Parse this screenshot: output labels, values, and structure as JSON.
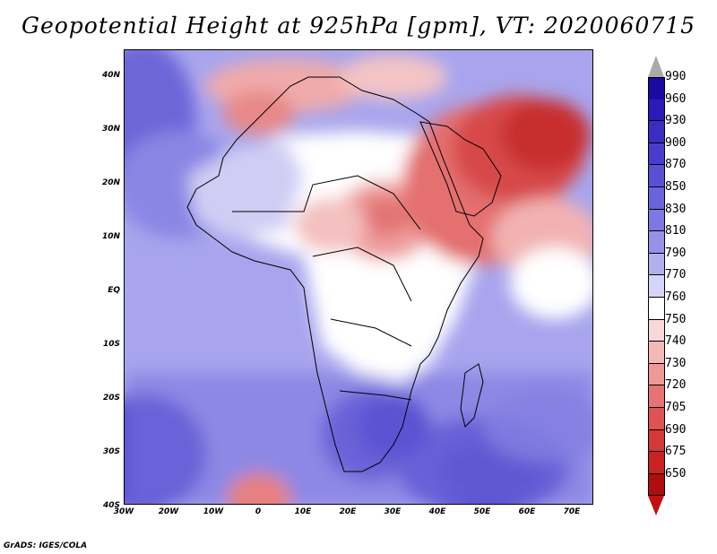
{
  "title": "Geopotential Height at 925hPa [gpm], VT: 2020060715",
  "credit": "GrADS: IGES/COLA",
  "map": {
    "lat_labels": [
      "40N",
      "30N",
      "20N",
      "10N",
      "EQ",
      "10S",
      "20S",
      "30S",
      "40S"
    ],
    "lon_labels": [
      "30W",
      "20W",
      "10W",
      "0",
      "10E",
      "20E",
      "30E",
      "40E",
      "50E",
      "60E",
      "70E"
    ],
    "ocean_color": "#a6a6ee",
    "features": [
      {
        "name": "low-height-iran-arabia",
        "value_gpm": 690,
        "color": "#d53a3a"
      },
      {
        "name": "high-height-south-indian-ocean",
        "value_gpm": 870,
        "color": "#3a30c8"
      },
      {
        "name": "high-height-south-atlantic",
        "value_gpm": 850,
        "color": "#5049d4"
      }
    ]
  },
  "colorbar": {
    "levels": [
      "990",
      "960",
      "930",
      "900",
      "870",
      "850",
      "830",
      "810",
      "790",
      "770",
      "760",
      "750",
      "740",
      "730",
      "720",
      "705",
      "690",
      "675",
      "650"
    ],
    "colors": [
      "#1a0aa0",
      "#2b1ab8",
      "#3b2cc4",
      "#4a3dce",
      "#5a50d6",
      "#6a63dc",
      "#7e78e2",
      "#9791e8",
      "#b3afef",
      "#d6d4f7",
      "#ffffff",
      "#f8d8d8",
      "#f4b8b8",
      "#ef9898",
      "#e67474",
      "#de5454",
      "#d43838",
      "#c82222",
      "#b00e0e"
    ],
    "over_color": "#aaaaaa",
    "under_color": "#c01010"
  }
}
